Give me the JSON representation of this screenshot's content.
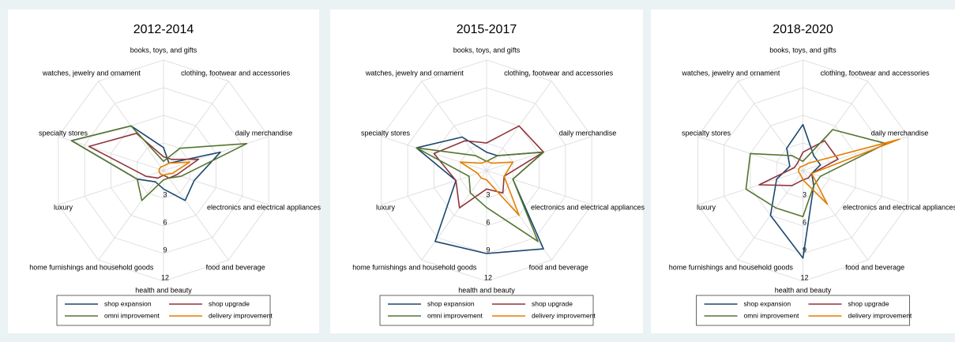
{
  "chart_data": [
    {
      "type": "radar",
      "title": "2012-2014",
      "categories": [
        "books, toys, and gifts",
        "clothing, footwear and accessories",
        "daily merchandise",
        "electronics and electrical appliances",
        "food and beverage",
        "health and beauty",
        "home furnishings and household goods",
        "luxury",
        "specialty stores",
        "watches, jewelry and ornament"
      ],
      "ylim": [
        0,
        12
      ],
      "yticks": [
        3,
        6,
        9,
        12
      ],
      "series": [
        {
          "name": "shop expansion",
          "color": "#1a476f",
          "values": [
            2.5,
            1,
            6.5,
            3.5,
            4,
            2,
            1.5,
            3,
            10.5,
            6
          ]
        },
        {
          "name": "shop upgrade",
          "color": "#90353b",
          "values": [
            1.5,
            1.5,
            4,
            1.5,
            1,
            0.5,
            1,
            2,
            8.5,
            5
          ]
        },
        {
          "name": "omni improvement",
          "color": "#55752f",
          "values": [
            1,
            3,
            9.5,
            2,
            1,
            1,
            4,
            3,
            10.5,
            6
          ]
        },
        {
          "name": "delivery improvement",
          "color": "#e37e00",
          "values": [
            0.5,
            1,
            3,
            1,
            0.5,
            0.5,
            0.5,
            0.5,
            0.5,
            0.5
          ]
        }
      ]
    },
    {
      "type": "radar",
      "title": "2015-2017",
      "categories": [
        "books, toys, and gifts",
        "clothing, footwear and accessories",
        "daily merchandise",
        "electronics and electrical appliances",
        "food and beverage",
        "health and beauty",
        "home furnishings and household goods",
        "luxury",
        "specialty stores",
        "watches, jewelry and ornament"
      ],
      "ylim": [
        0,
        12
      ],
      "yticks": [
        3,
        6,
        9,
        12
      ],
      "series": [
        {
          "name": "shop expansion",
          "color": "#1a476f",
          "values": [
            2,
            2,
            6.5,
            3,
            10.5,
            9,
            9.5,
            3.5,
            8,
            4.5
          ]
        },
        {
          "name": "shop upgrade",
          "color": "#90353b",
          "values": [
            3,
            6,
            6.5,
            2,
            3,
            2,
            5,
            3.5,
            6,
            4
          ]
        },
        {
          "name": "omni improvement",
          "color": "#55752f",
          "values": [
            1,
            2,
            6.5,
            3,
            9.5,
            4,
            3,
            2,
            8,
            2
          ]
        },
        {
          "name": "delivery improvement",
          "color": "#e37e00",
          "values": [
            1,
            1,
            3,
            2,
            6,
            1,
            1,
            1,
            3,
            1
          ]
        }
      ]
    },
    {
      "type": "radar",
      "title": "2018-2020",
      "categories": [
        "books, toys, and gifts",
        "clothing, footwear and accessories",
        "daily merchandise",
        "electronics and electrical appliances",
        "food and beverage",
        "health and beauty",
        "home furnishings and household goods",
        "luxury",
        "specialty stores",
        "watches, jewelry and ornament"
      ],
      "ylim": [
        0,
        12
      ],
      "yticks": [
        3,
        6,
        9,
        12
      ],
      "series": [
        {
          "name": "shop expansion",
          "color": "#1a476f",
          "values": [
            5,
            2,
            2,
            1,
            2,
            9.5,
            6,
            3,
            1.5,
            3
          ]
        },
        {
          "name": "shop upgrade",
          "color": "#90353b",
          "values": [
            2,
            4,
            4,
            1,
            1,
            1,
            2,
            5,
            1,
            1
          ]
        },
        {
          "name": "omni improvement",
          "color": "#55752f",
          "values": [
            1,
            5.5,
            9.5,
            2,
            2,
            5,
            5,
            6.5,
            6,
            2
          ]
        },
        {
          "name": "delivery improvement",
          "color": "#e37e00",
          "values": [
            0.5,
            1,
            11,
            1,
            4.5,
            1,
            0.5,
            0.5,
            0.5,
            0.5
          ]
        }
      ]
    }
  ]
}
